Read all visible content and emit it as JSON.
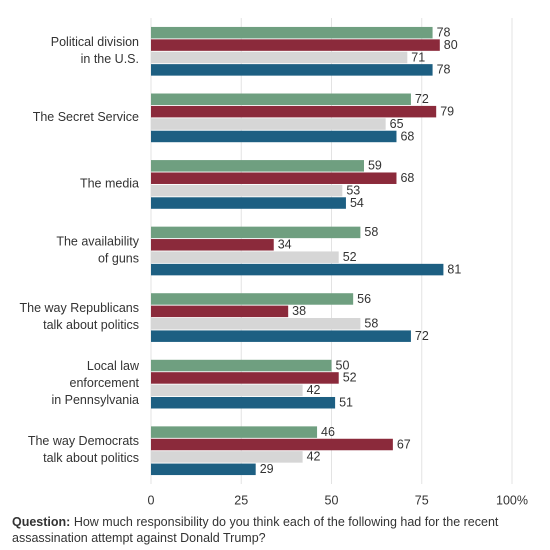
{
  "chart_data": {
    "type": "hbar",
    "categories": [
      "Political division\nin the U.S.",
      "The Secret Service",
      "The media",
      "The availability\nof guns",
      "The way Republicans\ntalk about politics",
      "Local law\nenforcement\nin Pennsylvania",
      "The way Democrats\ntalk about politics"
    ],
    "series": [
      {
        "color": "#6f9f80",
        "values": [
          78,
          72,
          59,
          58,
          56,
          50,
          46
        ]
      },
      {
        "color": "#8b2a3b",
        "values": [
          80,
          79,
          68,
          34,
          38,
          52,
          67
        ]
      },
      {
        "color": "#d6d6d6",
        "values": [
          71,
          65,
          53,
          52,
          58,
          42,
          42
        ]
      },
      {
        "color": "#1d5f82",
        "values": [
          78,
          68,
          54,
          81,
          72,
          51,
          29
        ]
      }
    ],
    "xlim": [
      0,
      100
    ],
    "xticks": [
      0,
      25,
      50,
      75,
      {
        "value": 100,
        "label": "100%"
      }
    ],
    "grid": true,
    "footnote_label": "Question:",
    "footnote": "How much responsibility do you think each of the following had for the recent assassination attempt against Donald Trump?"
  }
}
